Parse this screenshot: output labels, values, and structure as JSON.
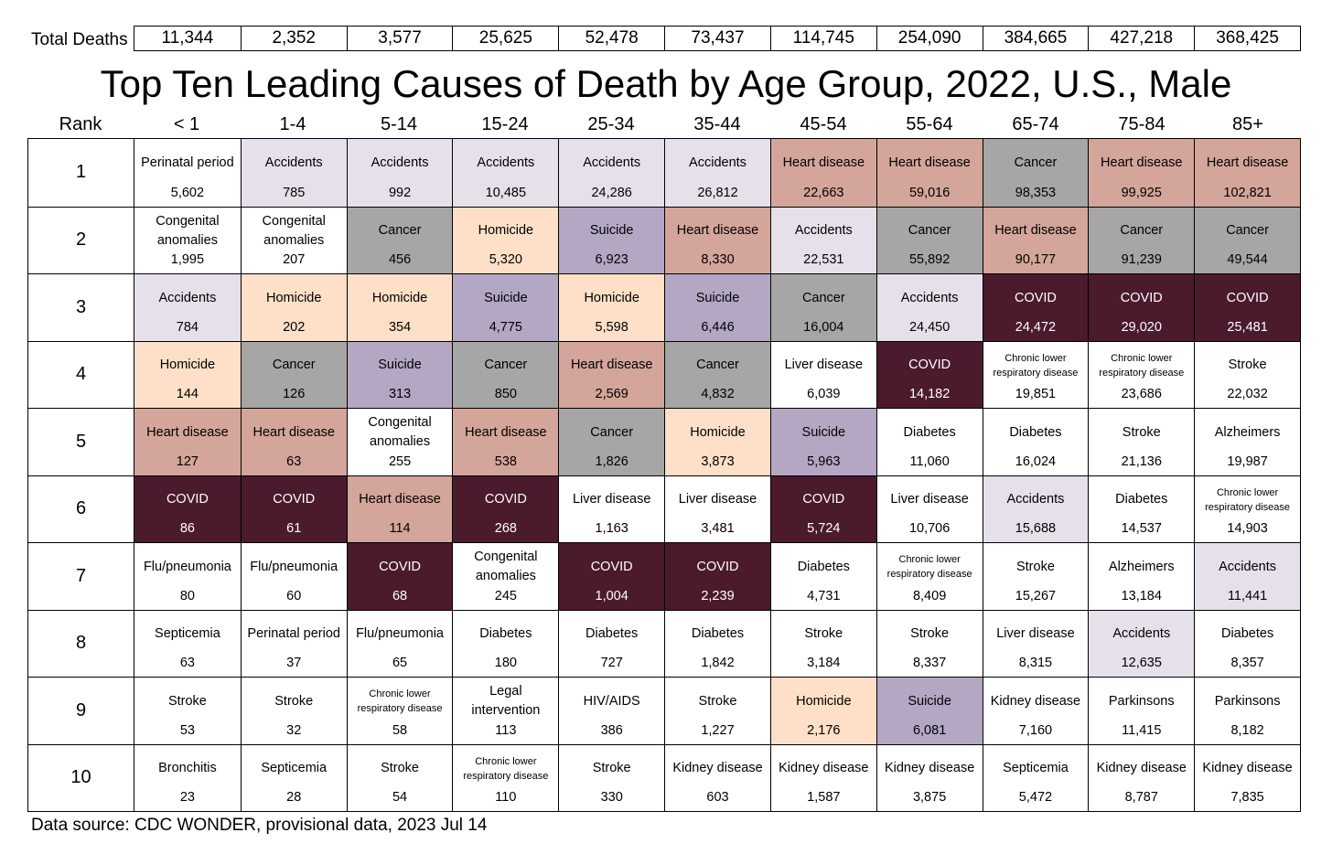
{
  "totals_label": "Total Deaths",
  "title": "Top Ten Leading Causes of Death by Age Group, 2022, U.S., Male",
  "rank_header": "Rank",
  "source": "Data source: CDC WONDER, provisional data, 2023 Jul 14",
  "colors": {
    "Accidents": "#e6e0eb",
    "Heart disease": "#d4a59a",
    "Cancer": "#a6a6a6",
    "Homicide": "#fde0c7",
    "Suicide": "#b4a7c4",
    "COVID": "#4b1a2d",
    "default": "#ffffff"
  },
  "chart_data": {
    "type": "table",
    "title": "Top Ten Leading Causes of Death by Age Group, 2022, U.S., Male",
    "age_groups": [
      "< 1",
      "1-4",
      "5-14",
      "15-24",
      "25-34",
      "35-44",
      "45-54",
      "55-64",
      "65-74",
      "75-84",
      "85+"
    ],
    "total_deaths": [
      "11,344",
      "2,352",
      "3,577",
      "25,625",
      "52,478",
      "73,437",
      "114,745",
      "254,090",
      "384,665",
      "427,218",
      "368,425"
    ],
    "ranks": [
      {
        "rank": "1",
        "cells": [
          {
            "cause": "Perinatal period",
            "value": "5,602"
          },
          {
            "cause": "Accidents",
            "value": "785"
          },
          {
            "cause": "Accidents",
            "value": "992"
          },
          {
            "cause": "Accidents",
            "value": "10,485"
          },
          {
            "cause": "Accidents",
            "value": "24,286"
          },
          {
            "cause": "Accidents",
            "value": "26,812"
          },
          {
            "cause": "Heart disease",
            "value": "22,663"
          },
          {
            "cause": "Heart disease",
            "value": "59,016"
          },
          {
            "cause": "Cancer",
            "value": "98,353"
          },
          {
            "cause": "Heart disease",
            "value": "99,925"
          },
          {
            "cause": "Heart disease",
            "value": "102,821"
          }
        ]
      },
      {
        "rank": "2",
        "cells": [
          {
            "cause": "Congenital anomalies",
            "value": "1,995"
          },
          {
            "cause": "Congenital anomalies",
            "value": "207"
          },
          {
            "cause": "Cancer",
            "value": "456"
          },
          {
            "cause": "Homicide",
            "value": "5,320"
          },
          {
            "cause": "Suicide",
            "value": "6,923"
          },
          {
            "cause": "Heart disease",
            "value": "8,330"
          },
          {
            "cause": "Accidents",
            "value": "22,531"
          },
          {
            "cause": "Cancer",
            "value": "55,892"
          },
          {
            "cause": "Heart disease",
            "value": "90,177"
          },
          {
            "cause": "Cancer",
            "value": "91,239"
          },
          {
            "cause": "Cancer",
            "value": "49,544"
          }
        ]
      },
      {
        "rank": "3",
        "cells": [
          {
            "cause": "Accidents",
            "value": "784"
          },
          {
            "cause": "Homicide",
            "value": "202"
          },
          {
            "cause": "Homicide",
            "value": "354"
          },
          {
            "cause": "Suicide",
            "value": "4,775"
          },
          {
            "cause": "Homicide",
            "value": "5,598"
          },
          {
            "cause": "Suicide",
            "value": "6,446"
          },
          {
            "cause": "Cancer",
            "value": "16,004"
          },
          {
            "cause": "Accidents",
            "value": "24,450"
          },
          {
            "cause": "COVID",
            "value": "24,472"
          },
          {
            "cause": "COVID",
            "value": "29,020"
          },
          {
            "cause": "COVID",
            "value": "25,481"
          }
        ]
      },
      {
        "rank": "4",
        "cells": [
          {
            "cause": "Homicide",
            "value": "144"
          },
          {
            "cause": "Cancer",
            "value": "126"
          },
          {
            "cause": "Suicide",
            "value": "313"
          },
          {
            "cause": "Cancer",
            "value": "850"
          },
          {
            "cause": "Heart disease",
            "value": "2,569"
          },
          {
            "cause": "Cancer",
            "value": "4,832"
          },
          {
            "cause": "Liver disease",
            "value": "6,039"
          },
          {
            "cause": "COVID",
            "value": "14,182"
          },
          {
            "cause": "Chronic lower respiratory disease",
            "value": "19,851"
          },
          {
            "cause": "Chronic lower respiratory disease",
            "value": "23,686"
          },
          {
            "cause": "Stroke",
            "value": "22,032"
          }
        ]
      },
      {
        "rank": "5",
        "cells": [
          {
            "cause": "Heart disease",
            "value": "127"
          },
          {
            "cause": "Heart disease",
            "value": "63"
          },
          {
            "cause": "Congenital anomalies",
            "value": "255"
          },
          {
            "cause": "Heart disease",
            "value": "538"
          },
          {
            "cause": "Cancer",
            "value": "1,826"
          },
          {
            "cause": "Homicide",
            "value": "3,873"
          },
          {
            "cause": "Suicide",
            "value": "5,963"
          },
          {
            "cause": "Diabetes",
            "value": "11,060"
          },
          {
            "cause": "Diabetes",
            "value": "16,024"
          },
          {
            "cause": "Stroke",
            "value": "21,136"
          },
          {
            "cause": "Alzheimers",
            "value": "19,987"
          }
        ]
      },
      {
        "rank": "6",
        "cells": [
          {
            "cause": "COVID",
            "value": "86"
          },
          {
            "cause": "COVID",
            "value": "61"
          },
          {
            "cause": "Heart disease",
            "value": "114"
          },
          {
            "cause": "COVID",
            "value": "268"
          },
          {
            "cause": "Liver disease",
            "value": "1,163"
          },
          {
            "cause": "Liver disease",
            "value": "3,481"
          },
          {
            "cause": "COVID",
            "value": "5,724"
          },
          {
            "cause": "Liver disease",
            "value": "10,706"
          },
          {
            "cause": "Accidents",
            "value": "15,688"
          },
          {
            "cause": "Diabetes",
            "value": "14,537"
          },
          {
            "cause": "Chronic lower respiratory disease",
            "value": "14,903"
          }
        ]
      },
      {
        "rank": "7",
        "cells": [
          {
            "cause": "Flu/pneumonia",
            "value": "80"
          },
          {
            "cause": "Flu/pneumonia",
            "value": "60"
          },
          {
            "cause": "COVID",
            "value": "68"
          },
          {
            "cause": "Congenital anomalies",
            "value": "245"
          },
          {
            "cause": "COVID",
            "value": "1,004"
          },
          {
            "cause": "COVID",
            "value": "2,239"
          },
          {
            "cause": "Diabetes",
            "value": "4,731"
          },
          {
            "cause": "Chronic lower respiratory disease",
            "value": "8,409"
          },
          {
            "cause": "Stroke",
            "value": "15,267"
          },
          {
            "cause": "Alzheimers",
            "value": "13,184"
          },
          {
            "cause": "Accidents",
            "value": "11,441"
          }
        ]
      },
      {
        "rank": "8",
        "cells": [
          {
            "cause": "Septicemia",
            "value": "63"
          },
          {
            "cause": "Perinatal period",
            "value": "37"
          },
          {
            "cause": "Flu/pneumonia",
            "value": "65"
          },
          {
            "cause": "Diabetes",
            "value": "180"
          },
          {
            "cause": "Diabetes",
            "value": "727"
          },
          {
            "cause": "Diabetes",
            "value": "1,842"
          },
          {
            "cause": "Stroke",
            "value": "3,184"
          },
          {
            "cause": "Stroke",
            "value": "8,337"
          },
          {
            "cause": "Liver disease",
            "value": "8,315"
          },
          {
            "cause": "Accidents",
            "value": "12,635"
          },
          {
            "cause": "Diabetes",
            "value": "8,357"
          }
        ]
      },
      {
        "rank": "9",
        "cells": [
          {
            "cause": "Stroke",
            "value": "53"
          },
          {
            "cause": "Stroke",
            "value": "32"
          },
          {
            "cause": "Chronic lower respiratory disease",
            "value": "58"
          },
          {
            "cause": "Legal intervention",
            "value": "113"
          },
          {
            "cause": "HIV/AIDS",
            "value": "386"
          },
          {
            "cause": "Stroke",
            "value": "1,227"
          },
          {
            "cause": "Homicide",
            "value": "2,176"
          },
          {
            "cause": "Suicide",
            "value": "6,081"
          },
          {
            "cause": "Kidney disease",
            "value": "7,160"
          },
          {
            "cause": "Parkinsons",
            "value": "11,415"
          },
          {
            "cause": "Parkinsons",
            "value": "8,182"
          }
        ]
      },
      {
        "rank": "10",
        "cells": [
          {
            "cause": "Bronchitis",
            "value": "23"
          },
          {
            "cause": "Septicemia",
            "value": "28"
          },
          {
            "cause": "Stroke",
            "value": "54"
          },
          {
            "cause": "Chronic lower respiratory disease",
            "value": "110"
          },
          {
            "cause": "Stroke",
            "value": "330"
          },
          {
            "cause": "Kidney disease",
            "value": "603"
          },
          {
            "cause": "Kidney disease",
            "value": "1,587"
          },
          {
            "cause": "Kidney disease",
            "value": "3,875"
          },
          {
            "cause": "Septicemia",
            "value": "5,472"
          },
          {
            "cause": "Kidney disease",
            "value": "8,787"
          },
          {
            "cause": "Kidney disease",
            "value": "7,835"
          }
        ]
      }
    ]
  }
}
